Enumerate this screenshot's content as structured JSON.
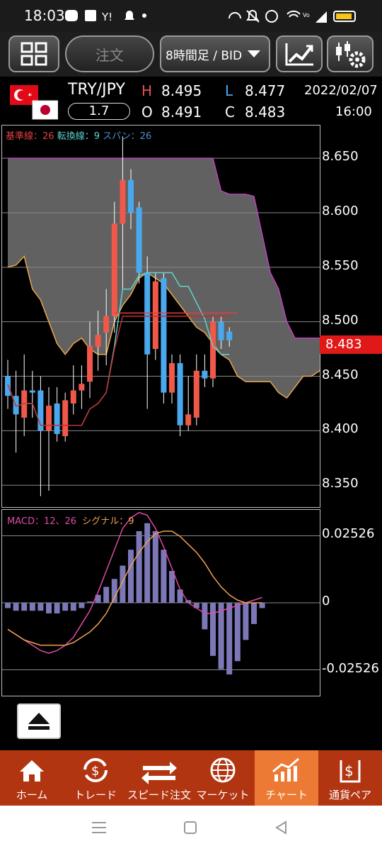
{
  "status_bar": {
    "time": "18:03"
  },
  "toolbar": {
    "order_button": "注文",
    "timeframe": "8時間足 / BID"
  },
  "quote": {
    "pair": "TRY/JPY",
    "spread": "1.7",
    "high_label": "H",
    "high": "8.495",
    "open_label": "O",
    "open": "8.491",
    "low_label": "L",
    "low": "8.477",
    "close_label": "C",
    "close": "8.483",
    "date": "2022/02/07",
    "time": "16:00"
  },
  "main_chart": {
    "legend_base": "基準線：26",
    "legend_conv": "転換線：9",
    "legend_span": "スパン：26",
    "y_ticks": [
      "8.650",
      "8.600",
      "8.550",
      "8.500",
      "8.450",
      "8.400",
      "8.350"
    ],
    "current_price": "8.483"
  },
  "macd_chart": {
    "legend_macd": "MACD：12、26",
    "legend_signal": "シグナル：9",
    "y_ticks": [
      "0.02526",
      "0",
      "-0.02526"
    ]
  },
  "chart_data": [
    {
      "type": "candlestick",
      "title": "TRY/JPY",
      "ylim": [
        8.33,
        8.68
      ],
      "candles": [
        {
          "o": 8.45,
          "h": 8.465,
          "l": 8.42,
          "c": 8.432
        },
        {
          "o": 8.432,
          "h": 8.455,
          "l": 8.38,
          "c": 8.415
        },
        {
          "o": 8.412,
          "h": 8.47,
          "l": 8.395,
          "c": 8.437
        },
        {
          "o": 8.437,
          "h": 8.455,
          "l": 8.412,
          "c": 8.435
        },
        {
          "o": 8.437,
          "h": 8.45,
          "l": 8.34,
          "c": 8.4
        },
        {
          "o": 8.4,
          "h": 8.44,
          "l": 8.345,
          "c": 8.423
        },
        {
          "o": 8.425,
          "h": 8.44,
          "l": 8.39,
          "c": 8.397
        },
        {
          "o": 8.395,
          "h": 8.435,
          "l": 8.39,
          "c": 8.428
        },
        {
          "o": 8.425,
          "h": 8.46,
          "l": 8.415,
          "c": 8.437
        },
        {
          "o": 8.437,
          "h": 8.46,
          "l": 8.42,
          "c": 8.443
        },
        {
          "o": 8.445,
          "h": 8.5,
          "l": 8.43,
          "c": 8.478
        },
        {
          "o": 8.477,
          "h": 8.51,
          "l": 8.455,
          "c": 8.488
        },
        {
          "o": 8.49,
          "h": 8.53,
          "l": 8.46,
          "c": 8.505
        },
        {
          "o": 8.505,
          "h": 8.61,
          "l": 8.49,
          "c": 8.59
        },
        {
          "o": 8.59,
          "h": 8.67,
          "l": 8.53,
          "c": 8.63
        },
        {
          "o": 8.63,
          "h": 8.64,
          "l": 8.585,
          "c": 8.6
        },
        {
          "o": 8.605,
          "h": 8.61,
          "l": 8.535,
          "c": 8.545
        },
        {
          "o": 8.545,
          "h": 8.56,
          "l": 8.42,
          "c": 8.47
        },
        {
          "o": 8.475,
          "h": 8.545,
          "l": 8.465,
          "c": 8.537
        },
        {
          "o": 8.54,
          "h": 8.545,
          "l": 8.425,
          "c": 8.435
        },
        {
          "o": 8.435,
          "h": 8.47,
          "l": 8.425,
          "c": 8.462
        },
        {
          "o": 8.462,
          "h": 8.47,
          "l": 8.395,
          "c": 8.405
        },
        {
          "o": 8.405,
          "h": 8.45,
          "l": 8.4,
          "c": 8.415
        },
        {
          "o": 8.412,
          "h": 8.47,
          "l": 8.405,
          "c": 8.455
        },
        {
          "o": 8.455,
          "h": 8.47,
          "l": 8.44,
          "c": 8.448
        },
        {
          "o": 8.448,
          "h": 8.505,
          "l": 8.44,
          "c": 8.5
        },
        {
          "o": 8.5,
          "h": 8.505,
          "l": 8.475,
          "c": 8.483
        },
        {
          "o": 8.491,
          "h": 8.495,
          "l": 8.477,
          "c": 8.483
        }
      ],
      "colors": {
        "up": "#f0584a",
        "down": "#4aa8ee",
        "cloud": "#6b6b6b",
        "base_line": "#e8a74a",
        "conv_line": "#5fd3d0",
        "lag_span": "#c040c0",
        "price_line": "#e04040"
      }
    },
    {
      "type": "bar",
      "title": "MACD",
      "ylim": [
        -0.035,
        0.035
      ],
      "values": [
        -0.002,
        -0.003,
        -0.003,
        -0.003,
        -0.003,
        -0.004,
        -0.004,
        -0.003,
        -0.003,
        -0.002,
        0.0005,
        0.003,
        0.006,
        0.009,
        0.014,
        0.02,
        0.027,
        0.03,
        0.027,
        0.02,
        0.012,
        0.005,
        0.001,
        -0.002,
        -0.01,
        -0.02,
        -0.025,
        -0.027,
        -0.022,
        -0.014,
        -0.008,
        -0.002
      ],
      "series": [
        {
          "name": "MACD",
          "values": [
            -0.01,
            -0.012,
            -0.014,
            -0.016,
            -0.018,
            -0.019,
            -0.018,
            -0.016,
            -0.013,
            -0.008,
            -0.003,
            0.004,
            0.012,
            0.02,
            0.028,
            0.032,
            0.034,
            0.033,
            0.028,
            0.021,
            0.013,
            0.005,
            0.0,
            -0.002,
            -0.004,
            -0.004,
            -0.003,
            -0.002,
            -0.001,
            0.0,
            0.001,
            0.002
          ]
        },
        {
          "name": "シグナル",
          "values": [
            -0.01,
            -0.012,
            -0.014,
            -0.015,
            -0.016,
            -0.016,
            -0.016,
            -0.016,
            -0.015,
            -0.013,
            -0.011,
            -0.008,
            -0.004,
            0.002,
            0.008,
            0.014,
            0.019,
            0.023,
            0.026,
            0.027,
            0.027,
            0.025,
            0.022,
            0.019,
            0.015,
            0.01,
            0.006,
            0.003,
            0.001,
            0.0,
            0.0,
            0.0
          ]
        }
      ],
      "colors": {
        "hist": "#7c78b8",
        "macd": "#e04aa8",
        "signal": "#f0a050"
      }
    }
  ],
  "nav": {
    "items": [
      {
        "label": "ホーム",
        "icon": "home-icon"
      },
      {
        "label": "トレード",
        "icon": "trade-icon"
      },
      {
        "label": "スピード注文",
        "icon": "speed-order-icon"
      },
      {
        "label": "マーケット",
        "icon": "market-icon"
      },
      {
        "label": "チャート",
        "icon": "chart-icon"
      },
      {
        "label": "通貨ペア",
        "icon": "currency-pair-icon"
      }
    ]
  }
}
